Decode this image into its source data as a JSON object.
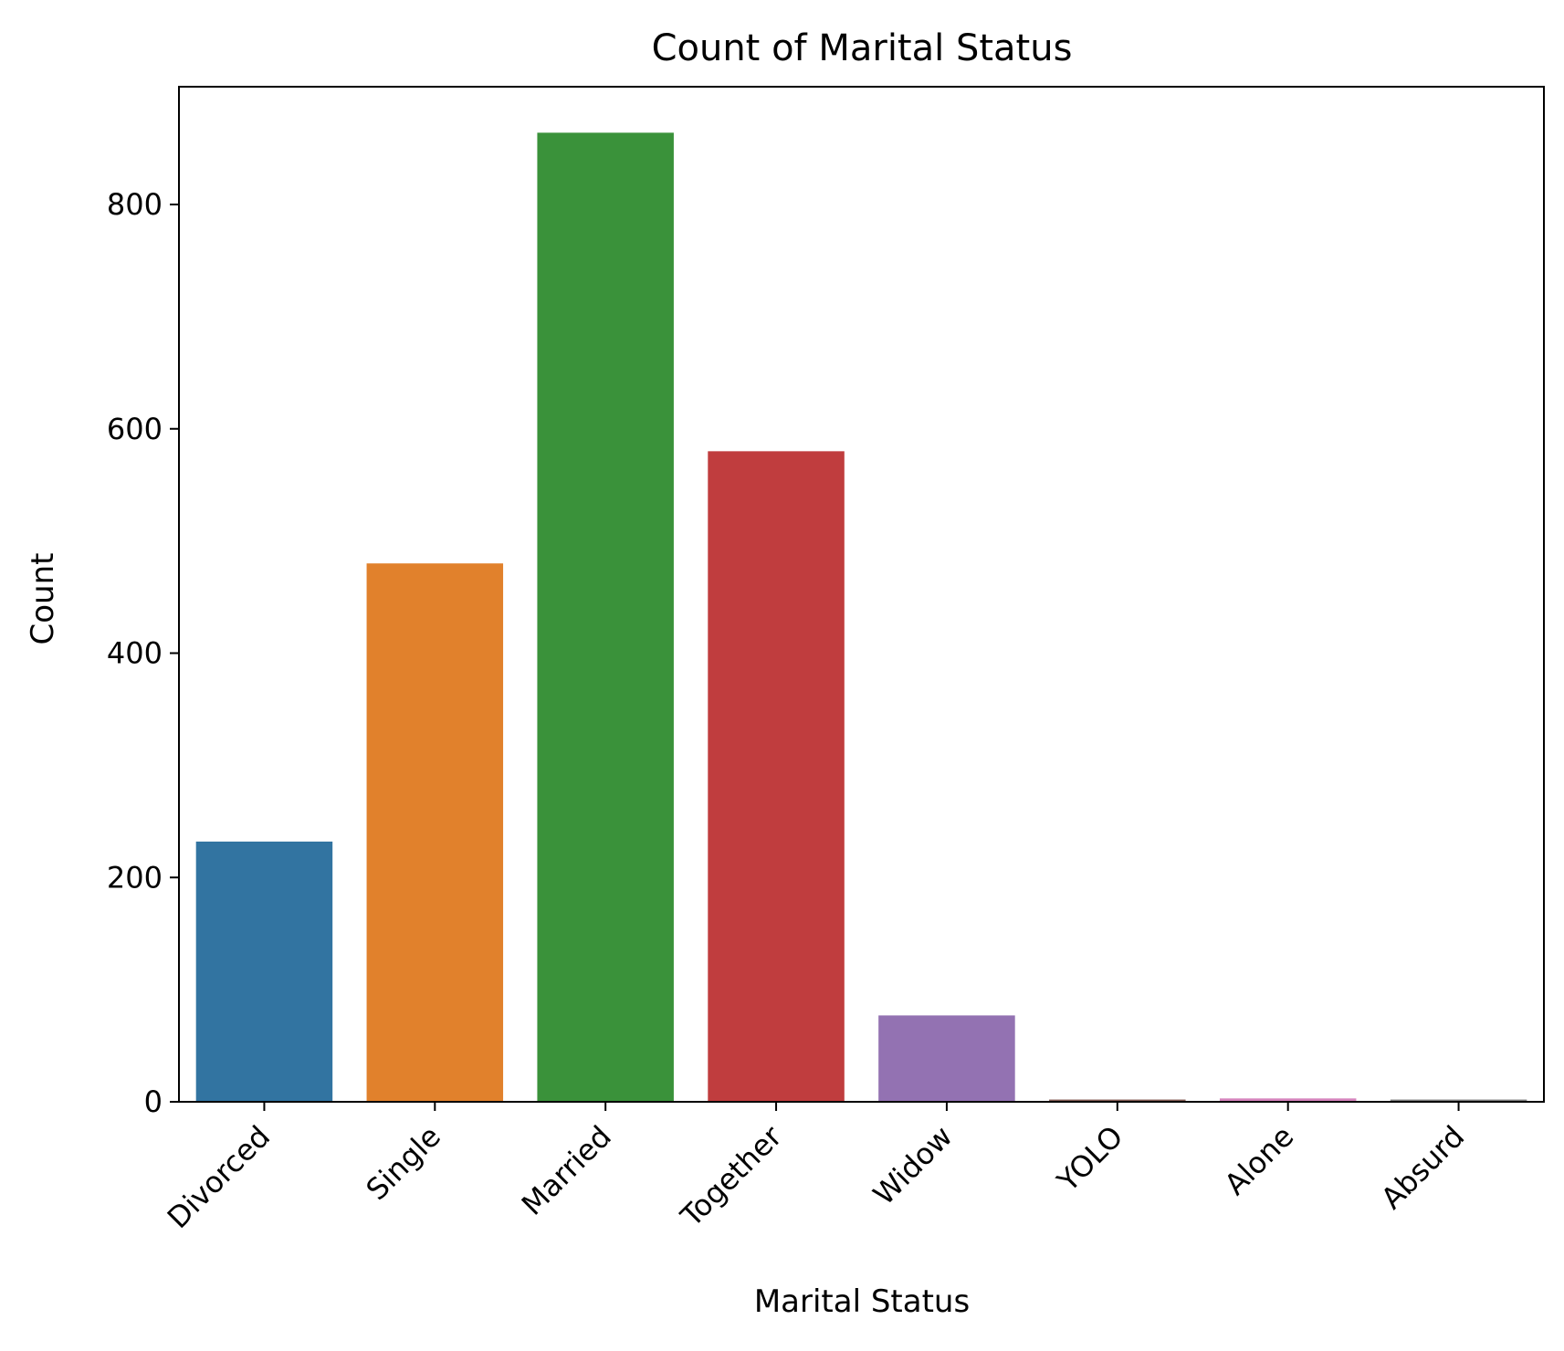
{
  "chart_data": {
    "type": "bar",
    "title": "Count of Marital Status",
    "xlabel": "Marital Status",
    "ylabel": "Count",
    "categories": [
      "Divorced",
      "Single",
      "Married",
      "Together",
      "Widow",
      "YOLO",
      "Alone",
      "Absurd"
    ],
    "values": [
      232,
      480,
      864,
      580,
      77,
      2,
      3,
      2
    ],
    "colors": [
      "#3274a1",
      "#e1812c",
      "#3a923a",
      "#c03d3e",
      "#9372b2",
      "#845b53",
      "#d684bd",
      "#7f7f7f"
    ],
    "ylim": [
      0,
      905
    ],
    "yticks": [
      0,
      200,
      400,
      600,
      800
    ],
    "grid": false,
    "legend": false
  }
}
